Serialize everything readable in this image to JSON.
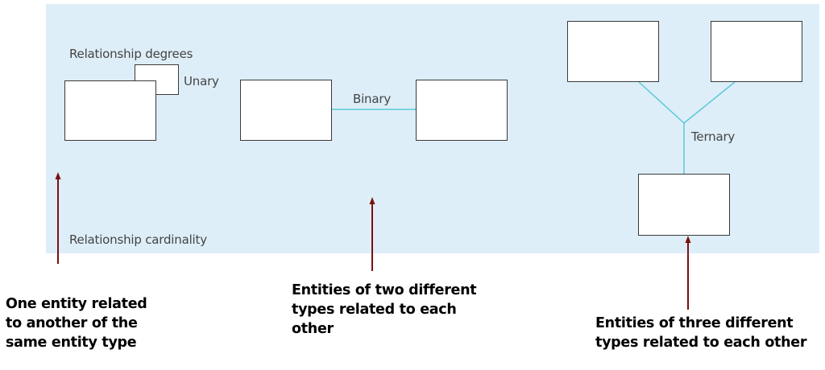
{
  "diagram": {
    "labels": {
      "relationship_degrees": "Relationship degrees",
      "unary": "Unary",
      "binary": "Binary",
      "ternary": "Ternary",
      "relationship_cardinality": "Relationship cardinality"
    },
    "notes": {
      "unary": [
        "One entity related",
        "to another of the",
        "same entity type"
      ],
      "binary": [
        "Entities of two different",
        "types related to each",
        "other"
      ],
      "ternary": [
        "Entities of three different",
        "types related to each other"
      ]
    },
    "colors": {
      "panel": "#ddeef8",
      "connector": "#5bc8d8",
      "arrow": "#7a1010",
      "entity_border": "#3a3a3a"
    }
  }
}
